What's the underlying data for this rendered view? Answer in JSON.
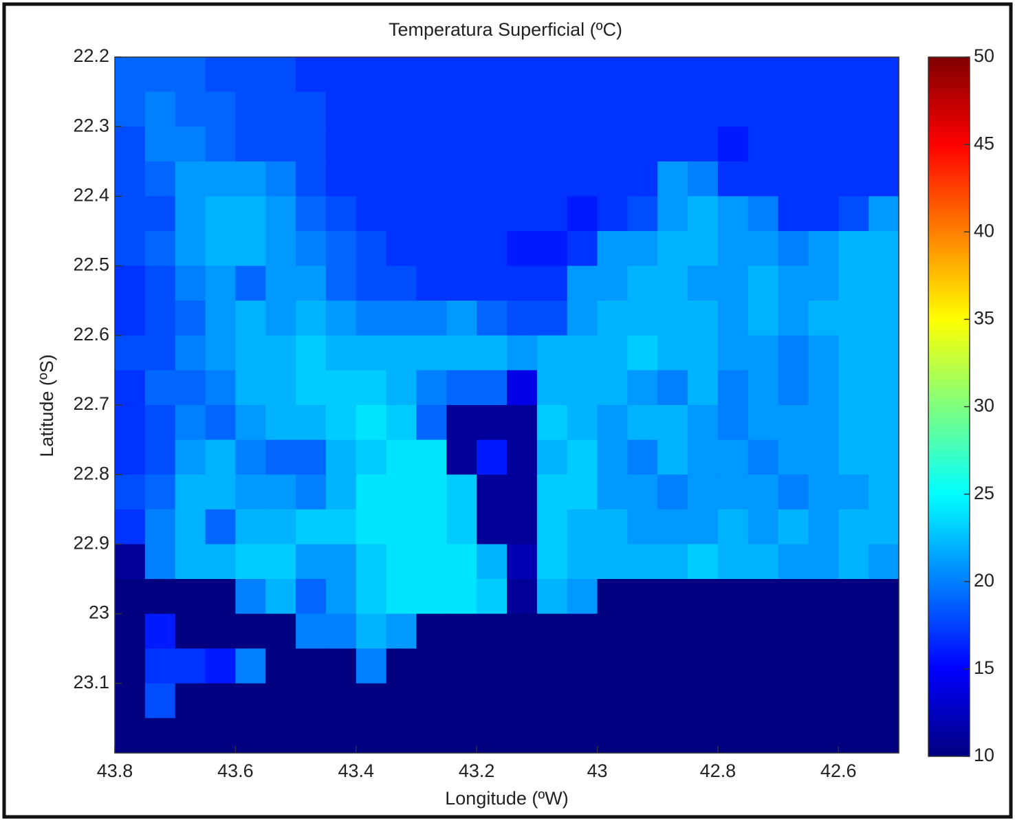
{
  "chart_data": {
    "type": "heatmap",
    "title": "Temperatura Superficial (ºC)",
    "xlabel": "Longitude (ºW)",
    "ylabel": "Latitude (ºS)",
    "colormap": "jet",
    "x": [
      43.775,
      43.725,
      43.675,
      43.625,
      43.575,
      43.525,
      43.475,
      43.425,
      43.375,
      43.325,
      43.275,
      43.225,
      43.175,
      43.125,
      43.075,
      43.025,
      42.975,
      42.925,
      42.875,
      42.825,
      42.775,
      42.725,
      42.675,
      42.625,
      42.575,
      42.525
    ],
    "y": [
      22.225,
      22.275,
      22.325,
      22.375,
      22.425,
      22.475,
      22.525,
      22.575,
      22.625,
      22.675,
      22.725,
      22.775,
      22.825,
      22.875,
      22.925,
      22.975,
      23.025,
      23.075,
      23.125,
      23.175
    ],
    "z": [
      [
        19,
        19,
        19,
        18,
        18,
        18,
        17,
        17,
        17,
        17,
        17,
        17,
        17,
        17,
        17,
        17,
        17,
        17,
        17,
        17,
        17,
        17,
        17,
        17,
        17,
        17
      ],
      [
        19,
        20,
        19,
        19,
        18,
        18,
        18,
        17,
        17,
        17,
        17,
        17,
        17,
        17,
        17,
        17,
        17,
        17,
        17,
        17,
        17,
        17,
        17,
        17,
        17,
        17
      ],
      [
        18,
        20,
        20,
        19,
        18,
        18,
        18,
        17,
        17,
        17,
        17,
        17,
        17,
        17,
        17,
        17,
        17,
        17,
        17,
        17,
        16,
        17,
        17,
        17,
        17,
        17
      ],
      [
        18,
        19,
        21,
        21,
        21,
        20,
        18,
        17,
        17,
        17,
        17,
        17,
        17,
        17,
        17,
        17,
        17,
        17,
        21,
        20,
        17,
        17,
        17,
        17,
        17,
        17
      ],
      [
        18,
        18,
        21,
        22,
        22,
        21,
        19,
        18,
        17,
        17,
        17,
        17,
        17,
        17,
        17,
        16,
        17,
        18,
        21,
        22,
        21,
        20,
        17,
        17,
        18,
        21
      ],
      [
        18,
        19,
        21,
        22,
        22,
        21,
        20,
        19,
        18,
        17,
        17,
        17,
        17,
        16,
        16,
        17,
        21,
        21,
        22,
        22,
        21,
        21,
        20,
        21,
        22,
        22
      ],
      [
        17,
        18,
        20,
        21,
        19,
        21,
        21,
        19,
        18,
        18,
        17,
        17,
        17,
        17,
        17,
        21,
        21,
        22,
        22,
        21,
        21,
        22,
        21,
        21,
        22,
        22
      ],
      [
        17,
        18,
        19,
        21,
        22,
        21,
        22,
        21,
        20,
        20,
        20,
        21,
        19,
        18,
        18,
        21,
        22,
        22,
        22,
        22,
        21,
        22,
        21,
        22,
        22,
        22
      ],
      [
        18,
        18,
        20,
        21,
        22,
        22,
        23,
        22,
        22,
        22,
        22,
        22,
        22,
        21,
        22,
        22,
        22,
        23,
        22,
        22,
        21,
        21,
        20,
        21,
        22,
        22
      ],
      [
        17,
        19,
        19,
        20,
        22,
        22,
        23,
        23,
        23,
        22,
        20,
        19,
        19,
        14,
        22,
        22,
        22,
        21,
        20,
        22,
        20,
        21,
        20,
        21,
        22,
        22
      ],
      [
        17,
        18,
        20,
        19,
        21,
        22,
        22,
        23,
        24,
        23,
        19,
        11,
        11,
        11,
        23,
        22,
        21,
        22,
        22,
        21,
        20,
        21,
        21,
        21,
        22,
        22
      ],
      [
        17,
        18,
        21,
        22,
        20,
        19,
        19,
        22,
        23,
        24,
        24,
        11,
        16,
        11,
        22,
        23,
        21,
        20,
        22,
        21,
        21,
        20,
        21,
        21,
        22,
        22
      ],
      [
        18,
        19,
        22,
        22,
        21,
        21,
        20,
        22,
        24,
        24,
        24,
        23,
        11,
        11,
        23,
        23,
        21,
        21,
        20,
        21,
        21,
        21,
        20,
        21,
        21,
        22
      ],
      [
        17,
        20,
        22,
        19,
        22,
        22,
        23,
        23,
        24,
        24,
        24,
        23,
        11,
        11,
        23,
        22,
        22,
        21,
        21,
        21,
        22,
        21,
        22,
        21,
        22,
        22
      ],
      [
        11,
        20,
        22,
        22,
        23,
        23,
        21,
        21,
        23,
        24,
        24,
        24,
        22,
        12,
        23,
        22,
        22,
        22,
        22,
        23,
        22,
        22,
        21,
        21,
        22,
        21
      ],
      [
        10,
        10,
        10,
        10,
        20,
        22,
        19,
        21,
        23,
        24,
        24,
        24,
        23,
        11,
        22,
        21,
        10,
        10,
        10,
        10,
        10,
        10,
        10,
        10,
        10,
        10
      ],
      [
        10,
        16,
        10,
        10,
        10,
        10,
        20,
        20,
        22,
        21,
        10,
        10,
        10,
        10,
        10,
        10,
        10,
        10,
        10,
        10,
        10,
        10,
        10,
        10,
        10,
        10
      ],
      [
        10,
        17,
        17,
        16,
        20,
        10,
        10,
        10,
        20,
        10,
        10,
        10,
        10,
        10,
        10,
        10,
        10,
        10,
        10,
        10,
        10,
        10,
        10,
        10,
        10,
        10
      ],
      [
        10,
        18,
        10,
        10,
        10,
        10,
        10,
        10,
        10,
        10,
        10,
        10,
        10,
        10,
        10,
        10,
        10,
        10,
        10,
        10,
        10,
        10,
        10,
        10,
        10,
        10
      ],
      [
        10,
        10,
        10,
        10,
        10,
        10,
        10,
        10,
        10,
        10,
        10,
        10,
        10,
        10,
        10,
        10,
        10,
        10,
        10,
        10,
        10,
        10,
        10,
        10,
        10,
        10
      ]
    ],
    "xlim": [
      43.8,
      42.5
    ],
    "ylim": [
      22.2,
      23.2
    ],
    "xticks": [
      43.8,
      43.6,
      43.4,
      43.2,
      43,
      42.8,
      42.6
    ],
    "yticks": [
      22.2,
      22.3,
      22.4,
      22.5,
      22.6,
      22.7,
      22.8,
      22.9,
      23,
      23.1
    ],
    "clim": [
      10,
      50
    ],
    "cticks": [
      10,
      15,
      20,
      25,
      30,
      35,
      40,
      45,
      50
    ]
  }
}
